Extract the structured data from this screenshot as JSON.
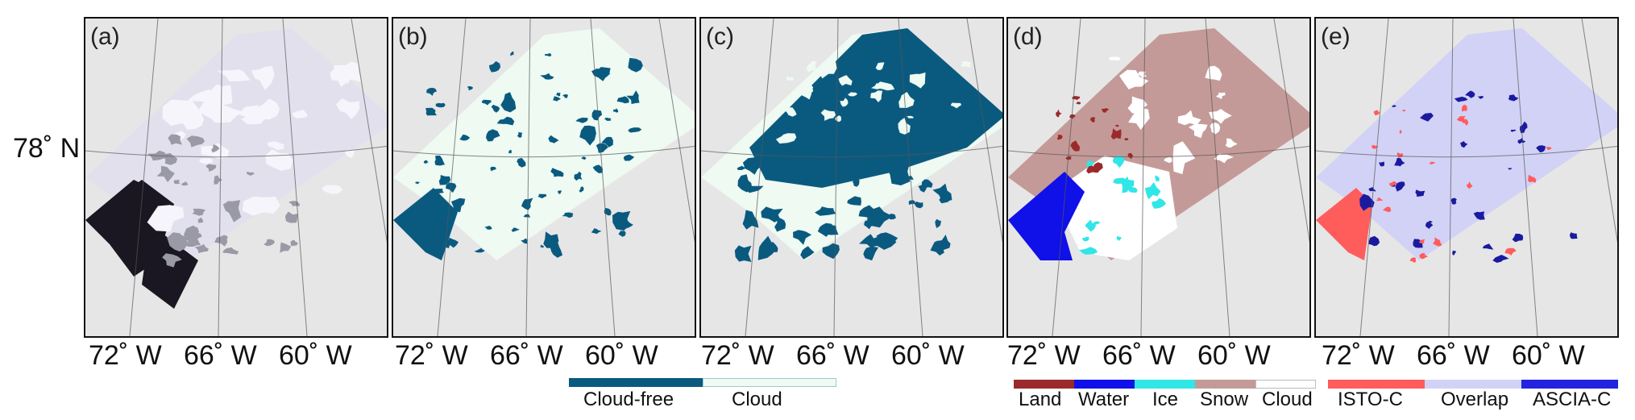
{
  "panels": [
    {
      "label": "(a)",
      "kind": "rgb_composite"
    },
    {
      "label": "(b)",
      "kind": "cloud_mask_1"
    },
    {
      "label": "(c)",
      "kind": "cloud_mask_2"
    },
    {
      "label": "(d)",
      "kind": "surface_classification"
    },
    {
      "label": "(e)",
      "kind": "comparison"
    }
  ],
  "latitude_label": "78˚ N",
  "longitude_labels": [
    "72˚ W",
    "66˚ W",
    "60˚ W"
  ],
  "legend_cloud": {
    "items": [
      {
        "label": "Cloud-free",
        "color": "#0a5a80"
      },
      {
        "label": "Cloud",
        "color": "#eefaf2"
      }
    ]
  },
  "legend_class": {
    "items": [
      {
        "label": "Land",
        "color": "#9b2a2a"
      },
      {
        "label": "Water",
        "color": "#1010e8"
      },
      {
        "label": "Ice",
        "color": "#30e6e6"
      },
      {
        "label": "Snow",
        "color": "#c49a98"
      },
      {
        "label": "Cloud",
        "color": "#ffffff"
      }
    ]
  },
  "legend_compare": {
    "items": [
      {
        "label": "ISTO-C",
        "color": "#ff5c5c"
      },
      {
        "label": "Overlap",
        "color": "#d2d2f6"
      },
      {
        "label": "ASCIA-C",
        "color": "#2222e0"
      }
    ]
  },
  "colors": {
    "panel_background": "#e6e6e6",
    "graticule": "#555555",
    "a_ice": "#e3e0ee",
    "a_ocean": "#1a1722",
    "b_cloud": "#eefaf2",
    "b_clear": "#0a5a80",
    "c_clear": "#0a5a80",
    "c_cloud": "#eefaf2",
    "d_snow": "#c49a98",
    "d_cloud": "#ffffff",
    "d_water": "#1010e8",
    "d_ice": "#30e6e6",
    "d_land": "#9b2a2a",
    "e_overlap": "#d2d2f6",
    "e_isto": "#ff5c5c",
    "e_ascia": "#1a1aa0"
  }
}
